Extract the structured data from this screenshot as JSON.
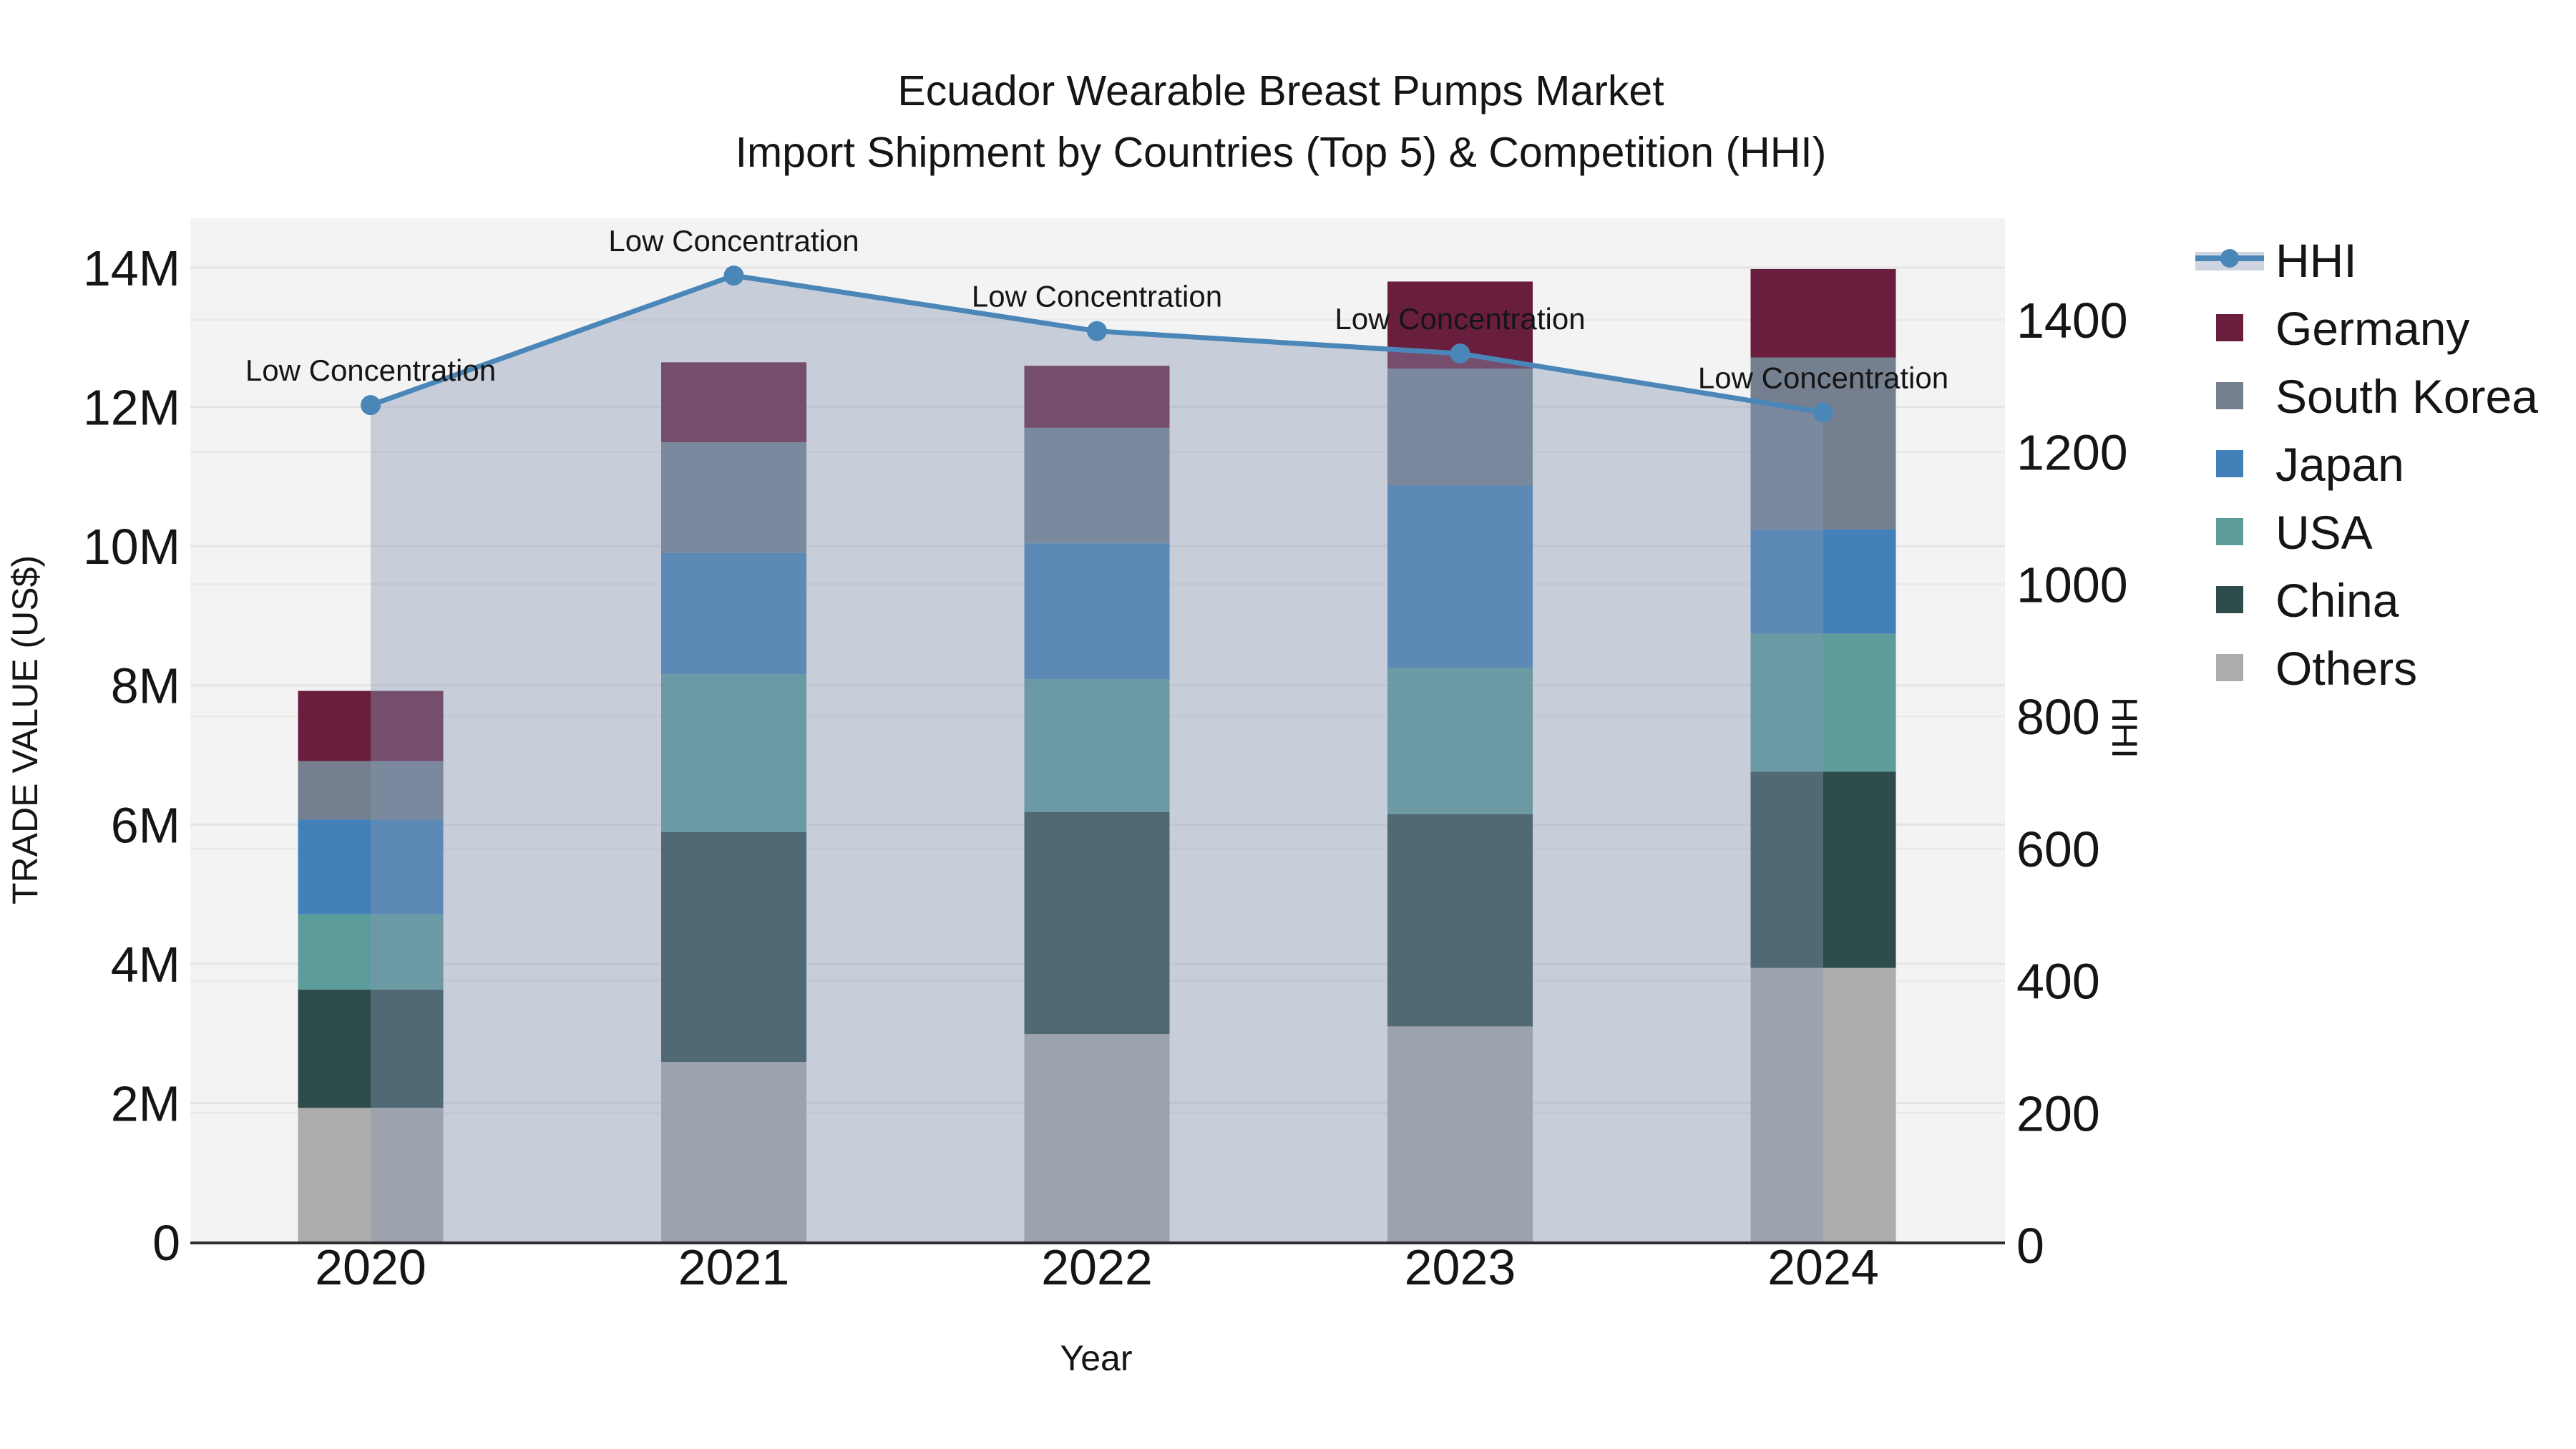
{
  "title": {
    "line1": "Ecuador Wearable Breast Pumps Market",
    "line2": "Import Shipment by Countries (Top 5) & Competition (HHI)"
  },
  "axes": {
    "x": {
      "label": "Year",
      "ticks": [
        "2020",
        "2021",
        "2022",
        "2023",
        "2024"
      ]
    },
    "y_left": {
      "label": "TRADE VALUE (US$)",
      "ticks": [
        "0",
        "2M",
        "4M",
        "6M",
        "8M",
        "10M",
        "12M",
        "14M"
      ],
      "unit": "M US$",
      "min": 0,
      "max_visible": 14
    },
    "y_right": {
      "label": "HHI",
      "ticks": [
        "0",
        "200",
        "400",
        "600",
        "800",
        "1000",
        "1200",
        "1400"
      ],
      "min": 0,
      "max_visible": 1400
    }
  },
  "legend": {
    "items": [
      {
        "label": "HHI",
        "type": "line-marker-band",
        "color": "#4A86B8",
        "band_color": "rgba(133,150,178,0.40)"
      },
      {
        "label": "Germany",
        "type": "swatch",
        "color": "#6A1E3E"
      },
      {
        "label": "South Korea",
        "type": "swatch",
        "color": "#74808F"
      },
      {
        "label": "Japan",
        "type": "swatch",
        "color": "#4380BA"
      },
      {
        "label": "USA",
        "type": "swatch",
        "color": "#5C9D9C"
      },
      {
        "label": "China",
        "type": "swatch",
        "color": "#2E4C4B"
      },
      {
        "label": "Others",
        "type": "swatch",
        "color": "#ACACAC"
      }
    ]
  },
  "chart_data": {
    "type": "bar",
    "subtype": "stacked-bars-with-line-and-area",
    "title": "Ecuador Wearable Breast Pumps Market — Import Shipment by Countries (Top 5) & Competition (HHI)",
    "xlabel": "Year",
    "ylabel_left": "TRADE VALUE (US$)",
    "ylabel_right": "HHI",
    "categories": [
      "2020",
      "2021",
      "2022",
      "2023",
      "2024"
    ],
    "series": [
      {
        "name": "Others",
        "color": "#ACACAC",
        "values_musd": [
          1.93,
          2.59,
          2.99,
          3.1,
          3.94
        ]
      },
      {
        "name": "China",
        "color": "#2E4C4B",
        "values_musd": [
          1.7,
          3.3,
          3.19,
          3.05,
          2.82
        ]
      },
      {
        "name": "USA",
        "color": "#5C9D9C",
        "values_musd": [
          1.08,
          2.27,
          1.91,
          2.1,
          1.98
        ]
      },
      {
        "name": "Japan",
        "color": "#4380BA",
        "values_musd": [
          1.36,
          1.74,
          1.95,
          2.62,
          1.5
        ]
      },
      {
        "name": "South Korea",
        "color": "#74808F",
        "values_musd": [
          0.84,
          1.59,
          1.66,
          1.68,
          2.47
        ]
      },
      {
        "name": "Germany",
        "color": "#6A1E3E",
        "values_musd": [
          1.01,
          1.15,
          0.89,
          1.25,
          1.27
        ]
      }
    ],
    "totals_musd": [
      7.92,
      12.64,
      12.59,
      13.8,
      13.98
    ],
    "hhi_line": {
      "name": "HHI",
      "color": "#4A86B8",
      "values": [
        1271,
        1467,
        1383,
        1349,
        1260
      ],
      "area_fill": "rgba(133,150,178,0.40)",
      "point_annotations": [
        "Low Concentration",
        "Low Concentration",
        "Low Concentration",
        "Low Concentration",
        "Low Concentration"
      ]
    },
    "ylim_left_musd": [
      0,
      14.72
    ],
    "ylim_right_hhi": [
      0,
      1553
    ],
    "grid": true,
    "legend_position": "right-outside",
    "plot_background": "#F3F3F3"
  },
  "colors": {
    "page_background": "#FFFFFF",
    "plot_background": "#F3F3F3",
    "gridline_left": "#E4E4E4",
    "gridline_right": "#EAEAEA",
    "axis_baseline": "#2F2F2F",
    "text": "#151515"
  }
}
